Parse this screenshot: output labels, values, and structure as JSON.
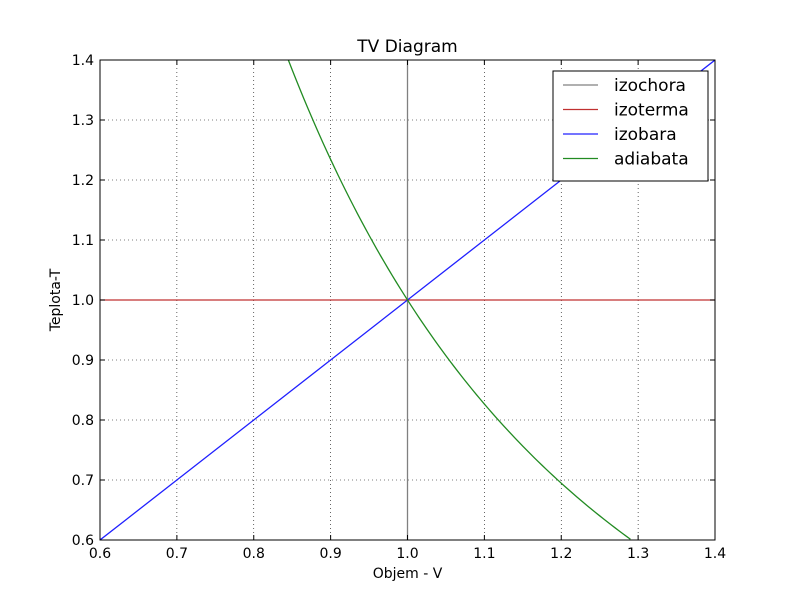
{
  "chart_data": {
    "type": "line",
    "title": "TV Diagram",
    "xlabel": "Objem - V",
    "ylabel": "Teplota-T",
    "xlim": [
      0.6,
      1.4
    ],
    "ylim": [
      0.6,
      1.4
    ],
    "xticks": [
      "0.6",
      "0.7",
      "0.8",
      "0.9",
      "1.0",
      "1.1",
      "1.2",
      "1.3",
      "1.4"
    ],
    "yticks": [
      "0.6",
      "0.7",
      "0.8",
      "0.9",
      "1.0",
      "1.1",
      "1.2",
      "1.3",
      "1.4"
    ],
    "grid": true,
    "legend_position": "top-right",
    "series": [
      {
        "name": "izochora",
        "color": "#808080",
        "x": [
          1.0,
          1.0
        ],
        "y": [
          0.6,
          1.4
        ]
      },
      {
        "name": "izoterma",
        "color": "#c03030",
        "x": [
          0.6,
          1.4
        ],
        "y": [
          1.0,
          1.0
        ]
      },
      {
        "name": "izobara",
        "color": "#2020ff",
        "x": [
          0.6,
          0.7,
          0.8,
          0.9,
          1.0,
          1.1,
          1.2,
          1.3,
          1.4
        ],
        "y": [
          0.6,
          0.7,
          0.8,
          0.9,
          1.0,
          1.1,
          1.2,
          1.3,
          1.4
        ]
      },
      {
        "name": "adiabata",
        "color": "#228b22",
        "x": [
          0.845,
          0.87,
          0.9,
          0.93,
          0.96,
          1.0,
          1.05,
          1.1,
          1.15,
          1.2,
          1.25,
          1.29
        ],
        "y": [
          1.4,
          1.32,
          1.23,
          1.15,
          1.08,
          1.0,
          0.91,
          0.83,
          0.76,
          0.7,
          0.64,
          0.6
        ]
      }
    ]
  }
}
